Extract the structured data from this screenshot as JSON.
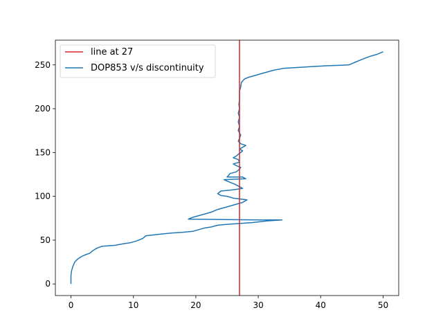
{
  "chart_data": {
    "type": "line",
    "title": "",
    "xlabel": "",
    "ylabel": "",
    "xlim": [
      -2.5,
      52.5
    ],
    "ylim": [
      -13.25,
      278.25
    ],
    "xticks": [
      0,
      10,
      20,
      30,
      40,
      50
    ],
    "yticks": [
      0,
      50,
      100,
      150,
      200,
      250
    ],
    "grid": false,
    "legend_position": "upper left",
    "colors": {
      "reference": "#d62728",
      "series": "#1f77b4"
    },
    "reference_line": {
      "name": "line at 27",
      "x": 27
    },
    "series": [
      {
        "name": "DOP853 v/s discontinuity",
        "points": [
          [
            0,
            0
          ],
          [
            0,
            5
          ],
          [
            0,
            10
          ],
          [
            0.1,
            15
          ],
          [
            0.3,
            20
          ],
          [
            0.6,
            25
          ],
          [
            1.0,
            28
          ],
          [
            1.6,
            31
          ],
          [
            2.2,
            33
          ],
          [
            3.0,
            35
          ],
          [
            3.5,
            38
          ],
          [
            4.2,
            41
          ],
          [
            5.0,
            43
          ],
          [
            7.0,
            44
          ],
          [
            8.5,
            46
          ],
          [
            9.5,
            47
          ],
          [
            10.5,
            49
          ],
          [
            11.5,
            52
          ],
          [
            12.0,
            55
          ],
          [
            14.5,
            57
          ],
          [
            16.0,
            58
          ],
          [
            18.0,
            59
          ],
          [
            19.5,
            60
          ],
          [
            20.5,
            62
          ],
          [
            21.5,
            64
          ],
          [
            22.5,
            65
          ],
          [
            23.5,
            67
          ],
          [
            25.0,
            68
          ],
          [
            27.0,
            69
          ],
          [
            29.0,
            70
          ],
          [
            31.5,
            72
          ],
          [
            33.8,
            73
          ],
          [
            30.0,
            73
          ],
          [
            25.0,
            73.5
          ],
          [
            21.0,
            73.8
          ],
          [
            18.8,
            74
          ],
          [
            19.5,
            76
          ],
          [
            20.5,
            78
          ],
          [
            21.5,
            80
          ],
          [
            22.5,
            82
          ],
          [
            23.5,
            85
          ],
          [
            24.5,
            87
          ],
          [
            25.5,
            89
          ],
          [
            26.5,
            91
          ],
          [
            27.5,
            93
          ],
          [
            28.2,
            96
          ],
          [
            27.0,
            97
          ],
          [
            26.0,
            98
          ],
          [
            25.0,
            100
          ],
          [
            24.0,
            101
          ],
          [
            23.5,
            103
          ],
          [
            24.0,
            106
          ],
          [
            25.5,
            107
          ],
          [
            26.5,
            108
          ],
          [
            27.5,
            109
          ],
          [
            27.0,
            111
          ],
          [
            26.2,
            114
          ],
          [
            25.5,
            116
          ],
          [
            24.5,
            119
          ],
          [
            26.0,
            119.5
          ],
          [
            28.0,
            120
          ],
          [
            27.5,
            122
          ],
          [
            26.0,
            122
          ],
          [
            25.0,
            122
          ],
          [
            25.5,
            126
          ],
          [
            26.5,
            128
          ],
          [
            27.0,
            131
          ],
          [
            27.2,
            133
          ],
          [
            26.5,
            135
          ],
          [
            26.0,
            137
          ],
          [
            27.0,
            139
          ],
          [
            26.8,
            142
          ],
          [
            26.0,
            144
          ],
          [
            26.5,
            146
          ],
          [
            26.8,
            148
          ],
          [
            27.2,
            150
          ],
          [
            27.5,
            152
          ],
          [
            27.0,
            154
          ],
          [
            27.5,
            156
          ],
          [
            28.0,
            158
          ],
          [
            27.2,
            160
          ],
          [
            26.8,
            163
          ],
          [
            27.0,
            166
          ],
          [
            27.2,
            170
          ],
          [
            26.8,
            175
          ],
          [
            27.0,
            180
          ],
          [
            26.8,
            185
          ],
          [
            27.0,
            190
          ],
          [
            26.8,
            195
          ],
          [
            27.0,
            200
          ],
          [
            26.9,
            205
          ],
          [
            27.0,
            210
          ],
          [
            27.0,
            215
          ],
          [
            27.0,
            220
          ],
          [
            27.2,
            225
          ],
          [
            27.3,
            230
          ],
          [
            27.8,
            234
          ],
          [
            28.5,
            236
          ],
          [
            29.5,
            238
          ],
          [
            30.5,
            240
          ],
          [
            31.5,
            242
          ],
          [
            32.5,
            244
          ],
          [
            34.0,
            246
          ],
          [
            36.0,
            247
          ],
          [
            38.5,
            248
          ],
          [
            41.0,
            249
          ],
          [
            43.0,
            249.5
          ],
          [
            44.5,
            250
          ],
          [
            45.5,
            253
          ],
          [
            46.5,
            256
          ],
          [
            48.0,
            260
          ],
          [
            49.0,
            262
          ],
          [
            50.0,
            265
          ]
        ]
      }
    ]
  }
}
